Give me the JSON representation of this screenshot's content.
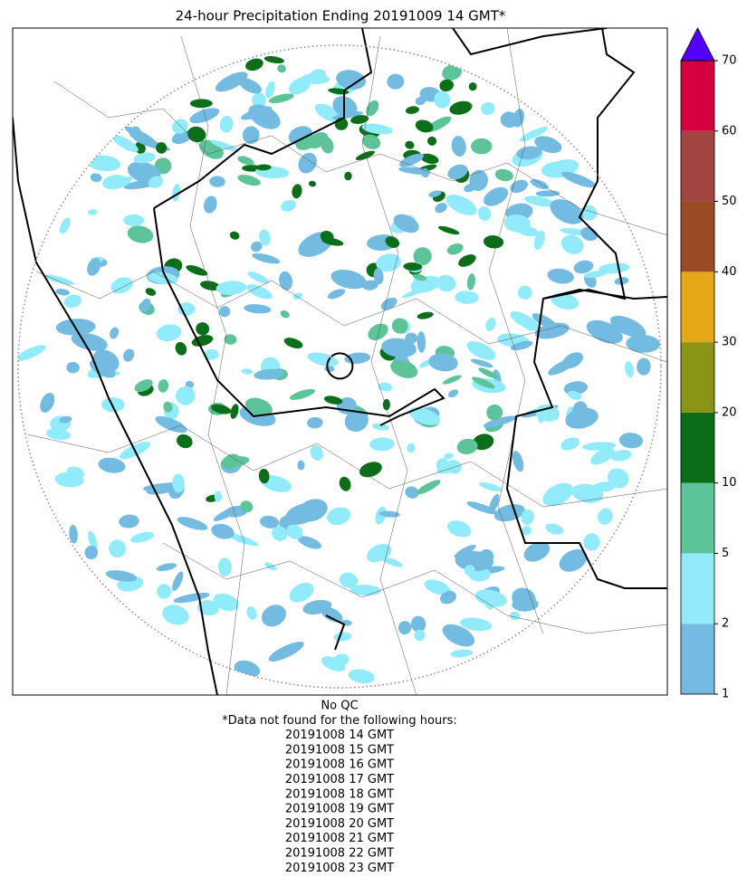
{
  "title": "24-hour Precipitation Ending 20191009 14 GMT*",
  "colorbar": {
    "levels": [
      1,
      2,
      5,
      10,
      20,
      30,
      40,
      50,
      60,
      70
    ],
    "colors": [
      "#74bbe1",
      "#92ebfb",
      "#5dc398",
      "#0d6e1a",
      "#8a9417",
      "#e7a817",
      "#9a4c25",
      "#a34641",
      "#d6003f"
    ],
    "extend_color": "#5300ff"
  },
  "notes": [
    "No QC",
    "*Data not found for the following hours:",
    "20191008 14 GMT",
    "20191008 15 GMT",
    "20191008 16 GMT",
    "20191008 17 GMT",
    "20191008 18 GMT",
    "20191008 19 GMT",
    "20191008 20 GMT",
    "20191008 21 GMT",
    "20191008 22 GMT",
    "20191008 23 GMT"
  ]
}
